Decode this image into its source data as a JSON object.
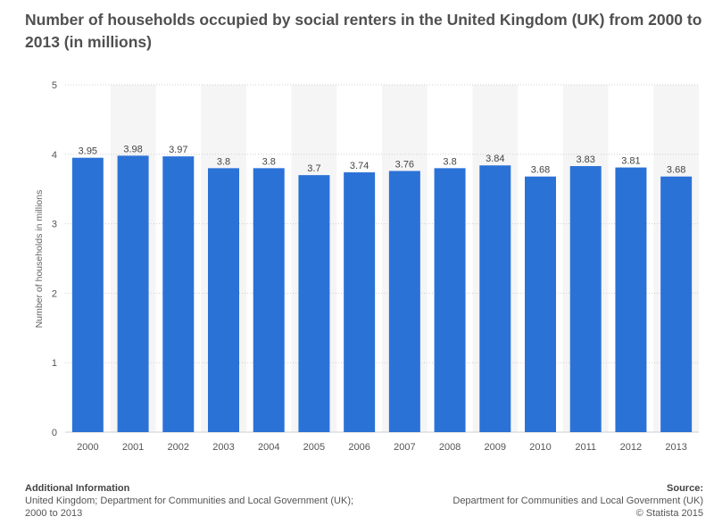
{
  "title": "Number of households occupied by social renters in the United Kingdom (UK) from 2000 to 2013 (in millions)",
  "footer": {
    "additional_info_label": "Additional Information",
    "additional_info_text": "United Kingdom; Department for Communities and Local Government (UK); 2000 to 2013",
    "source_label": "Source:",
    "source_text": "Department for Communities and Local Government (UK)",
    "copyright": "© Statista 2015"
  },
  "colors": {
    "bar": "#2b72d7",
    "band": "#f5f5f5",
    "grid": "#cfcfcf",
    "text": "#555555"
  },
  "chart_data": {
    "type": "bar",
    "title": "Number of households occupied by social renters in the United Kingdom (UK) from 2000 to 2013 (in millions)",
    "xlabel": "",
    "ylabel": "Number of households in millions",
    "ylim": [
      0,
      5
    ],
    "yticks": [
      0,
      1,
      2,
      3,
      4,
      5
    ],
    "categories": [
      "2000",
      "2001",
      "2002",
      "2003",
      "2004",
      "2005",
      "2006",
      "2007",
      "2008",
      "2009",
      "2010",
      "2011",
      "2012",
      "2013"
    ],
    "values": [
      3.95,
      3.98,
      3.97,
      3.8,
      3.8,
      3.7,
      3.74,
      3.76,
      3.8,
      3.84,
      3.68,
      3.83,
      3.81,
      3.68
    ],
    "value_labels": [
      "3.95",
      "3.98",
      "3.97",
      "3.8",
      "3.8",
      "3.7",
      "3.74",
      "3.76",
      "3.8",
      "3.84",
      "3.68",
      "3.83",
      "3.81",
      "3.68"
    ],
    "grid": true,
    "legend": "none"
  }
}
